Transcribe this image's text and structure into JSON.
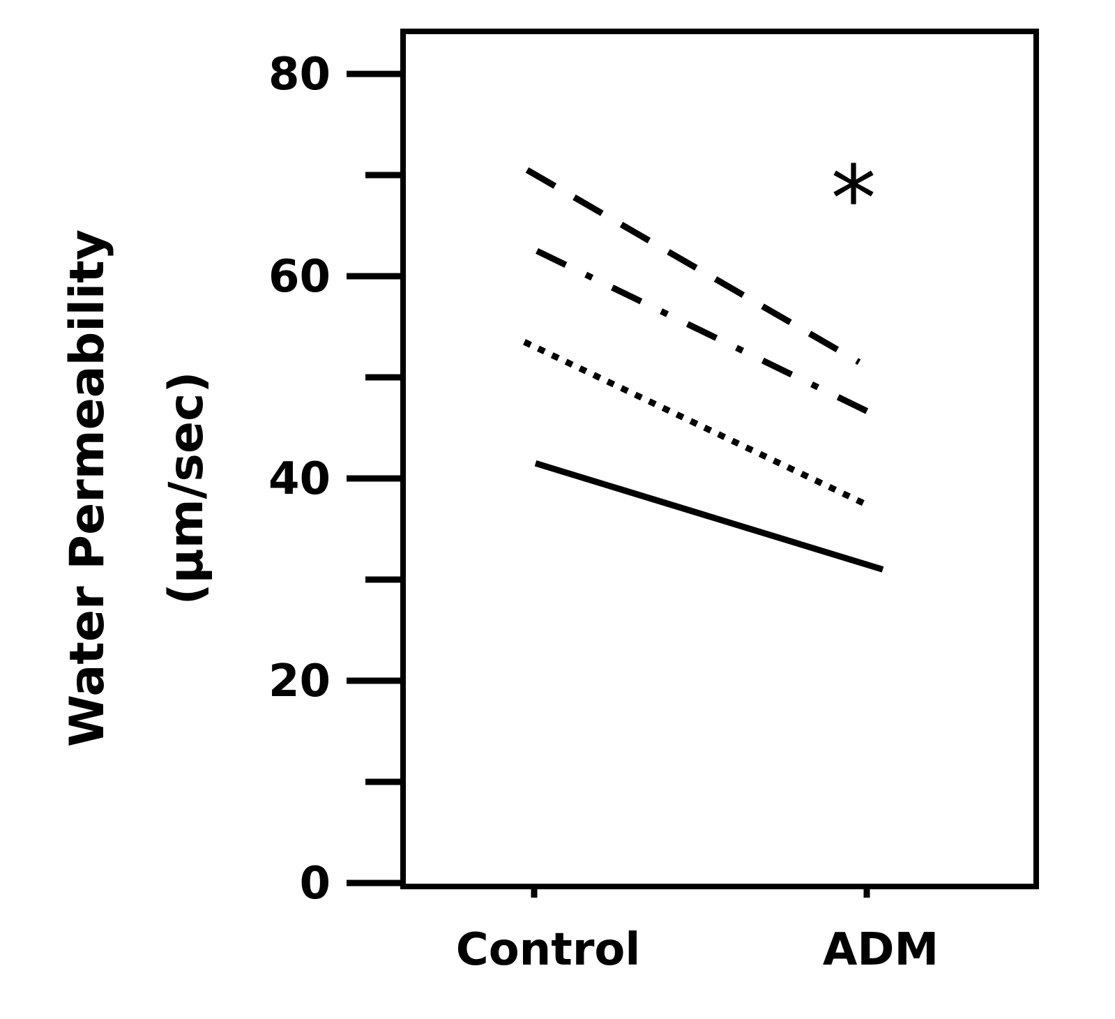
{
  "chart_data": {
    "type": "line",
    "title": "",
    "xlabel": "",
    "ylabel": "Water Permeability",
    "ylabel_unit": "(µm/sec)",
    "categories": [
      "Control",
      "ADM"
    ],
    "ylim": [
      0,
      84
    ],
    "yticks_major": [
      0,
      20,
      40,
      60,
      80
    ],
    "yticks_major_labels": [
      "0",
      "20",
      "40",
      "60",
      "80"
    ],
    "yticks_minor": [
      10,
      30,
      50,
      70
    ],
    "grid": false,
    "legend": "none",
    "annotation": "*",
    "series": [
      {
        "values": [
          70.5,
          51.5
        ],
        "style": "dashed"
      },
      {
        "values": [
          62.5,
          46.5
        ],
        "style": "dashdot"
      },
      {
        "values": [
          53.5,
          37.5
        ],
        "style": "dotted"
      },
      {
        "values": [
          41.5,
          31.0
        ],
        "style": "solid"
      }
    ]
  },
  "colors": {
    "ink": "#000000",
    "background": "#ffffff"
  }
}
